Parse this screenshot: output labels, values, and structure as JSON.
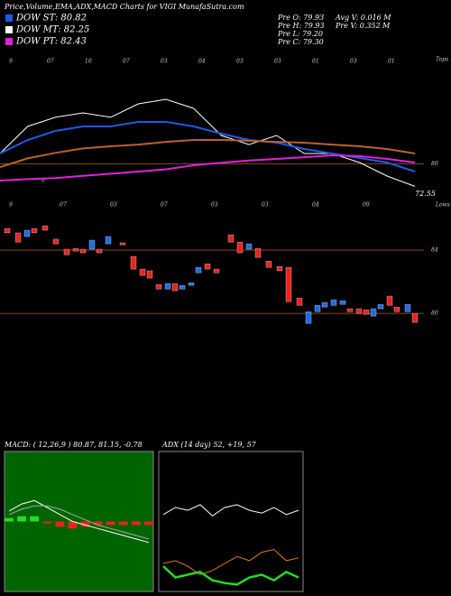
{
  "header": {
    "title": "Price,Volume,EMA,ADX,MACD Charts for VIGI MunafaSutra.com",
    "legend": [
      {
        "name": "DOW ST: 80.82",
        "color": "#1e5ae6"
      },
      {
        "name": "DOW MT: 82.25",
        "color": "#ffffff"
      },
      {
        "name": "DOW PT: 82.43",
        "color": "#e020e0"
      }
    ],
    "info_left": [
      "Pre O: 79.93",
      "Pre H: 79.93",
      "Pre L: 79.20",
      "Pre C: 79.30"
    ],
    "info_right": [
      "Avg V: 0.016 M",
      "Pre V: 0.352 M"
    ]
  },
  "chart_data": [
    {
      "type": "line",
      "top_dates": [
        "9",
        "07",
        "10",
        "07",
        "03",
        "04",
        "03",
        "03",
        "01",
        "03",
        "01"
      ],
      "tops_label": "Tops",
      "last_label": "72.55",
      "start_label": "0",
      "ylim": [
        76,
        90
      ],
      "yticks": [
        80
      ],
      "series": [
        {
          "name": "Price",
          "color": "#ffffff",
          "values": [
            80.94,
            83.41,
            84.24,
            84.65,
            84.24,
            85.47,
            85.88,
            85.06,
            82.59,
            81.76,
            82.59,
            80.94,
            80.94,
            80.12,
            78.88,
            77.94
          ]
        },
        {
          "name": "EMA short",
          "color": "#1e5ae6",
          "values": [
            80.94,
            82.18,
            83.0,
            83.41,
            83.41,
            83.82,
            83.82,
            83.41,
            82.75,
            82.18,
            81.93,
            81.35,
            80.94,
            80.53,
            80.12,
            79.29
          ]
        },
        {
          "name": "EMA long",
          "color": "#e020e0",
          "values": [
            78.47,
            78.6,
            78.7,
            78.9,
            79.1,
            79.29,
            79.5,
            79.87,
            80.1,
            80.3,
            80.45,
            80.6,
            80.78,
            80.7,
            80.45,
            80.12
          ]
        },
        {
          "name": "EMA very long",
          "color": "#b8632a",
          "values": [
            79.71,
            80.5,
            81.0,
            81.4,
            81.6,
            81.76,
            82.0,
            82.18,
            82.18,
            82.1,
            82.0,
            81.93,
            81.76,
            81.6,
            81.35,
            80.94
          ]
        }
      ]
    },
    {
      "type": "candlestick",
      "low_dates": [
        "9",
        "07",
        "03",
        "07",
        "03",
        "03",
        "04",
        "09"
      ],
      "lows_label": "Lows",
      "ylim": [
        78.69,
        85.83
      ],
      "yticks": [
        84,
        80
      ],
      "x": [
        8,
        20,
        30,
        38,
        50,
        62,
        74,
        84,
        92,
        102,
        110,
        120,
        136,
        148,
        158,
        166,
        176,
        186,
        194,
        202,
        212,
        220,
        230,
        240,
        256,
        266,
        276,
        286,
        298,
        310,
        320,
        332,
        342,
        352,
        360,
        370,
        380,
        388,
        398,
        406,
        414,
        422,
        432,
        440,
        452,
        460
      ],
      "open": [
        85.37,
        85.09,
        84.86,
        85.37,
        85.54,
        84.69,
        84.06,
        84.11,
        84.06,
        84.06,
        84.06,
        84.4,
        84.46,
        83.6,
        82.8,
        82.69,
        81.83,
        81.54,
        81.89,
        81.54,
        81.77,
        82.57,
        83.14,
        82.8,
        84.97,
        84.51,
        84.06,
        84.11,
        83.31,
        82.97,
        82.91,
        80.97,
        79.37,
        80.11,
        80.4,
        80.51,
        80.57,
        80.29,
        80.29,
        80.23,
        79.83,
        80.29,
        81.09,
        80.4,
        80.11,
        80.0
      ],
      "close": [
        85.09,
        84.51,
        85.26,
        85.09,
        85.26,
        84.4,
        83.71,
        83.94,
        83.83,
        84.63,
        83.83,
        84.86,
        84.34,
        82.8,
        82.4,
        82.23,
        81.54,
        81.89,
        81.43,
        81.77,
        81.94,
        82.91,
        82.8,
        82.57,
        84.51,
        83.83,
        84.4,
        83.54,
        82.91,
        82.69,
        80.74,
        80.51,
        80.11,
        80.51,
        80.69,
        80.86,
        80.8,
        80.11,
        80.0,
        79.94,
        80.29,
        80.57,
        80.51,
        80.11,
        80.57,
        79.43
      ]
    },
    {
      "type": "macd",
      "title": "MACD: ( 12,26,9 ) 80.87, 81.15, -0.78",
      "ylim": [
        -2,
        2
      ],
      "series": [
        {
          "name": "MACD",
          "color": "#ffffff",
          "values": [
            0.3,
            0.5,
            0.6,
            0.4,
            0.2,
            0.0,
            -0.1,
            -0.2,
            -0.3,
            -0.4,
            -0.5,
            -0.6
          ]
        },
        {
          "name": "Signal",
          "color": "#aaaaaa",
          "values": [
            0.2,
            0.35,
            0.45,
            0.45,
            0.35,
            0.2,
            0.05,
            -0.1,
            -0.2,
            -0.3,
            -0.4,
            -0.5
          ]
        }
      ],
      "histogram": [
        0.1,
        0.15,
        0.15,
        -0.05,
        -0.15,
        -0.2,
        -0.15,
        -0.1,
        -0.1,
        -0.1,
        -0.1,
        -0.1
      ]
    },
    {
      "type": "adx",
      "title": "ADX (14 day) 52, +19, 57",
      "ylim": [
        0,
        100
      ],
      "series": [
        {
          "name": "ADX",
          "color": "#ffffff",
          "values": [
            55,
            60,
            58,
            62,
            54,
            60,
            62,
            58,
            56,
            60,
            55,
            58
          ]
        },
        {
          "name": "+DI",
          "color": "#e07a10",
          "values": [
            20,
            22,
            18,
            12,
            15,
            20,
            25,
            22,
            28,
            30,
            22,
            24
          ]
        },
        {
          "name": "-DI",
          "color": "#22dd22",
          "values": [
            18,
            10,
            12,
            14,
            8,
            6,
            5,
            10,
            12,
            8,
            14,
            10
          ]
        }
      ]
    }
  ]
}
